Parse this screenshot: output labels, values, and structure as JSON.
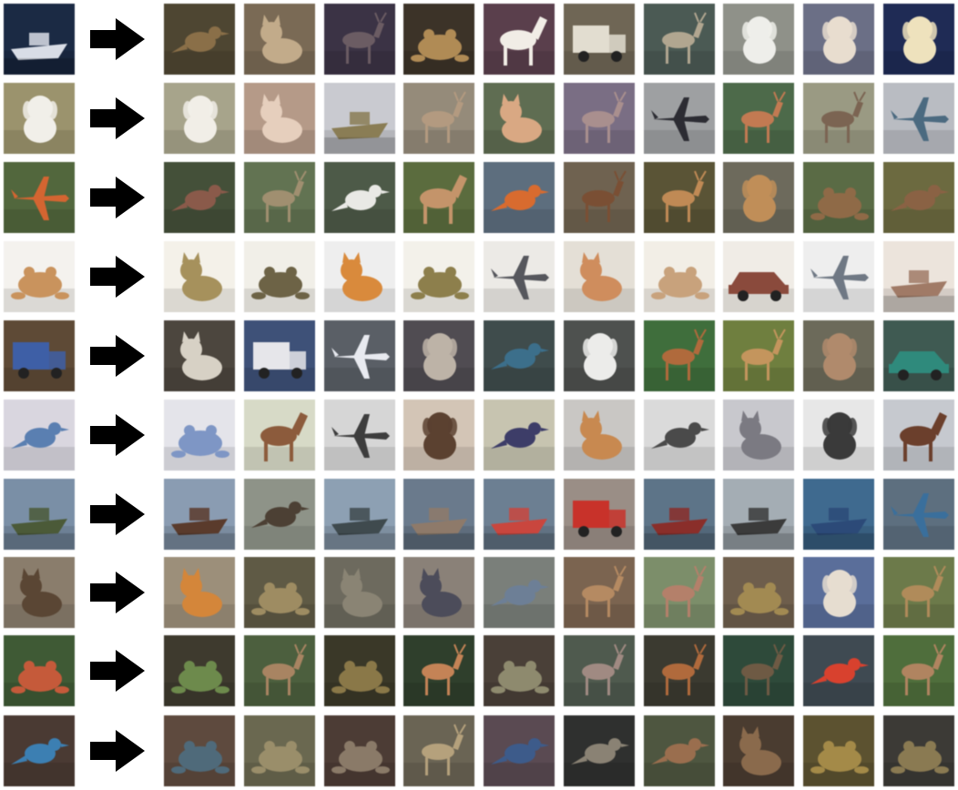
{
  "figure": {
    "arrow_icon": "right-arrow-icon",
    "arrow_color": "#000000",
    "rows": [
      {
        "query": {
          "subject": "boat",
          "bg": "#1b2a44",
          "fg": "#d9dde6",
          "shape": "boat"
        },
        "results": [
          {
            "subject": "bird",
            "bg": "#4e4632",
            "fg": "#8a6f48",
            "shape": "bird"
          },
          {
            "subject": "cat",
            "bg": "#7a6a55",
            "fg": "#c2ab8a",
            "shape": "cat"
          },
          {
            "subject": "deer",
            "bg": "#3b3345",
            "fg": "#6b5c63",
            "shape": "deer"
          },
          {
            "subject": "frog",
            "bg": "#3c3328",
            "fg": "#b08b55",
            "shape": "frog"
          },
          {
            "subject": "horse",
            "bg": "#5a3f4c",
            "fg": "#f1ede6",
            "shape": "horse"
          },
          {
            "subject": "truck",
            "bg": "#6f6655",
            "fg": "#e2ddd0",
            "shape": "truck"
          },
          {
            "subject": "deer",
            "bg": "#4b5a54",
            "fg": "#b1a690",
            "shape": "deer"
          },
          {
            "subject": "dog",
            "bg": "#8f9189",
            "fg": "#eeeeea",
            "shape": "dog"
          },
          {
            "subject": "dog",
            "bg": "#6b6f86",
            "fg": "#e8ddcf",
            "shape": "dog"
          },
          {
            "subject": "dog",
            "bg": "#1f2b55",
            "fg": "#eee2bd",
            "shape": "dog"
          }
        ]
      },
      {
        "query": {
          "subject": "dog",
          "bg": "#9b936d",
          "fg": "#f1efe9",
          "shape": "dog"
        },
        "results": [
          {
            "subject": "dog",
            "bg": "#a7a48b",
            "fg": "#f1eee7",
            "shape": "dog"
          },
          {
            "subject": "cat",
            "bg": "#b59a88",
            "fg": "#e6cfbd",
            "shape": "cat"
          },
          {
            "subject": "ship",
            "bg": "#c9cad0",
            "fg": "#8a7d55",
            "shape": "boat"
          },
          {
            "subject": "deer",
            "bg": "#958b7a",
            "fg": "#b39a80",
            "shape": "deer"
          },
          {
            "subject": "cat",
            "bg": "#5f6d52",
            "fg": "#d9a883",
            "shape": "cat"
          },
          {
            "subject": "deer",
            "bg": "#7a6e84",
            "fg": "#a98f8e",
            "shape": "deer"
          },
          {
            "subject": "airplane",
            "bg": "#9ea0a2",
            "fg": "#2c2c33",
            "shape": "plane"
          },
          {
            "subject": "deer",
            "bg": "#4d6a4a",
            "fg": "#c27a52",
            "shape": "deer"
          },
          {
            "subject": "deer",
            "bg": "#9a9a83",
            "fg": "#7b6452",
            "shape": "deer"
          },
          {
            "subject": "airplane",
            "bg": "#b9bcc2",
            "fg": "#4b6a80",
            "shape": "plane"
          }
        ]
      },
      {
        "query": {
          "subject": "airplane",
          "bg": "#52673d",
          "fg": "#d46531",
          "shape": "plane"
        },
        "results": [
          {
            "subject": "bird",
            "bg": "#445039",
            "fg": "#8a5a4a",
            "shape": "bird"
          },
          {
            "subject": "deer",
            "bg": "#627352",
            "fg": "#a08f70",
            "shape": "deer"
          },
          {
            "subject": "bird",
            "bg": "#4d5a48",
            "fg": "#e9e9e5",
            "shape": "bird"
          },
          {
            "subject": "horse",
            "bg": "#5b6c3e",
            "fg": "#c4946a",
            "shape": "horse"
          },
          {
            "subject": "bird",
            "bg": "#5d6e7e",
            "fg": "#d86b2f",
            "shape": "bird"
          },
          {
            "subject": "deer",
            "bg": "#6f6250",
            "fg": "#7a4f34",
            "shape": "deer"
          },
          {
            "subject": "deer",
            "bg": "#5a5436",
            "fg": "#c08a55",
            "shape": "deer"
          },
          {
            "subject": "dog",
            "bg": "#6d6a5c",
            "fg": "#c08e58",
            "shape": "dog"
          },
          {
            "subject": "frog",
            "bg": "#5a6b45",
            "fg": "#8f6a47",
            "shape": "frog"
          },
          {
            "subject": "bird",
            "bg": "#6c6a40",
            "fg": "#8a6244",
            "shape": "bird"
          }
        ]
      },
      {
        "query": {
          "subject": "frog",
          "bg": "#f4f2ee",
          "fg": "#c9935d",
          "shape": "frog"
        },
        "results": [
          {
            "subject": "cat",
            "bg": "#f4f1e9",
            "fg": "#a6915c",
            "shape": "cat"
          },
          {
            "subject": "frog",
            "bg": "#f1efe8",
            "fg": "#6d6346",
            "shape": "frog"
          },
          {
            "subject": "cat",
            "bg": "#eeeeee",
            "fg": "#d98a3c",
            "shape": "cat"
          },
          {
            "subject": "frog",
            "bg": "#f3f1ea",
            "fg": "#8d7f4c",
            "shape": "frog"
          },
          {
            "subject": "airplane",
            "bg": "#eceae6",
            "fg": "#56575d",
            "shape": "plane"
          },
          {
            "subject": "cat",
            "bg": "#e4dfd6",
            "fg": "#cf8d5d",
            "shape": "cat"
          },
          {
            "subject": "frog",
            "bg": "#f2eee6",
            "fg": "#c8a27c",
            "shape": "frog"
          },
          {
            "subject": "car",
            "bg": "#f0ece6",
            "fg": "#8a4a3c",
            "shape": "car"
          },
          {
            "subject": "airplane",
            "bg": "#eeeeee",
            "fg": "#6f7884",
            "shape": "plane"
          },
          {
            "subject": "ship",
            "bg": "#ece4dc",
            "fg": "#a07a66",
            "shape": "boat"
          }
        ]
      },
      {
        "query": {
          "subject": "truck",
          "bg": "#5e4a36",
          "fg": "#3e5fa6",
          "shape": "truck"
        },
        "results": [
          {
            "subject": "cat",
            "bg": "#4c463e",
            "fg": "#d7d1c5",
            "shape": "cat"
          },
          {
            "subject": "truck",
            "bg": "#3e5178",
            "fg": "#e6e6ea",
            "shape": "truck"
          },
          {
            "subject": "airplane",
            "bg": "#5a5f66",
            "fg": "#e8eaf0",
            "shape": "plane"
          },
          {
            "subject": "dog",
            "bg": "#504c52",
            "fg": "#bdb3a7",
            "shape": "dog"
          },
          {
            "subject": "bird",
            "bg": "#3f4c4c",
            "fg": "#3c6f8b",
            "shape": "bird"
          },
          {
            "subject": "dog",
            "bg": "#4e514f",
            "fg": "#ececea",
            "shape": "dog"
          },
          {
            "subject": "deer",
            "bg": "#3f6e3c",
            "fg": "#b06a3c",
            "shape": "deer"
          },
          {
            "subject": "deer",
            "bg": "#6f7f3f",
            "fg": "#c4955d",
            "shape": "deer"
          },
          {
            "subject": "dog",
            "bg": "#6c6a5a",
            "fg": "#b08a6c",
            "shape": "dog"
          },
          {
            "subject": "car",
            "bg": "#3f5a52",
            "fg": "#2f8a7c",
            "shape": "car"
          }
        ]
      },
      {
        "query": {
          "subject": "bird",
          "bg": "#d9d6df",
          "fg": "#5a7fb1",
          "shape": "bird"
        },
        "results": [
          {
            "subject": "frog",
            "bg": "#e4e4ea",
            "fg": "#7e96c5",
            "shape": "frog"
          },
          {
            "subject": "horse",
            "bg": "#d7dac7",
            "fg": "#8c5b3c",
            "shape": "horse"
          },
          {
            "subject": "airplane",
            "bg": "#d6d6d6",
            "fg": "#3d3d3d",
            "shape": "plane"
          },
          {
            "subject": "dog",
            "bg": "#d3c5b6",
            "fg": "#5b4130",
            "shape": "dog"
          },
          {
            "subject": "bird",
            "bg": "#c7c4b0",
            "fg": "#3d3d68",
            "shape": "bird"
          },
          {
            "subject": "cat",
            "bg": "#c9c7c4",
            "fg": "#c88950",
            "shape": "cat"
          },
          {
            "subject": "bird",
            "bg": "#dadada",
            "fg": "#4a4a4a",
            "shape": "bird"
          },
          {
            "subject": "cat",
            "bg": "#c8c8cd",
            "fg": "#7b7a82",
            "shape": "cat"
          },
          {
            "subject": "dog",
            "bg": "#e7e7e7",
            "fg": "#3a3a3a",
            "shape": "dog"
          },
          {
            "subject": "horse",
            "bg": "#c6c9cf",
            "fg": "#6b3f2c",
            "shape": "horse"
          }
        ]
      },
      {
        "query": {
          "subject": "boat",
          "bg": "#7a8fa6",
          "fg": "#4b5a38",
          "shape": "boat"
        },
        "results": [
          {
            "subject": "ship",
            "bg": "#8a9cb2",
            "fg": "#5a3b2c",
            "shape": "boat"
          },
          {
            "subject": "bird",
            "bg": "#8e9388",
            "fg": "#4c4034",
            "shape": "bird"
          },
          {
            "subject": "ship",
            "bg": "#8da0b3",
            "fg": "#3f4a4e",
            "shape": "boat"
          },
          {
            "subject": "ship",
            "bg": "#6a7a8c",
            "fg": "#8e7a6a",
            "shape": "boat"
          },
          {
            "subject": "ship",
            "bg": "#6c7f92",
            "fg": "#c9463e",
            "shape": "boat"
          },
          {
            "subject": "truck",
            "bg": "#9a8e86",
            "fg": "#c8322a",
            "shape": "truck"
          },
          {
            "subject": "ship",
            "bg": "#5d7488",
            "fg": "#8a2e2a",
            "shape": "boat"
          },
          {
            "subject": "ship",
            "bg": "#a4adb4",
            "fg": "#3b3b3b",
            "shape": "boat"
          },
          {
            "subject": "ship",
            "bg": "#3f6a8f",
            "fg": "#2c4a78",
            "shape": "boat"
          },
          {
            "subject": "airplane",
            "bg": "#5d6f7f",
            "fg": "#3a6f9c",
            "shape": "plane"
          }
        ]
      },
      {
        "query": {
          "subject": "cat",
          "bg": "#8a7d6c",
          "fg": "#5a4634",
          "shape": "cat"
        },
        "results": [
          {
            "subject": "cat",
            "bg": "#9c8f7a",
            "fg": "#d4863a",
            "shape": "cat"
          },
          {
            "subject": "frog",
            "bg": "#5f5a45",
            "fg": "#9e8c62",
            "shape": "frog"
          },
          {
            "subject": "cat",
            "bg": "#6d6a5e",
            "fg": "#8a8474",
            "shape": "cat"
          },
          {
            "subject": "cat",
            "bg": "#8a8178",
            "fg": "#4c4c5a",
            "shape": "cat"
          },
          {
            "subject": "bird",
            "bg": "#7a7f7a",
            "fg": "#6d7f96",
            "shape": "bird"
          },
          {
            "subject": "deer",
            "bg": "#7b6450",
            "fg": "#b58a62",
            "shape": "deer"
          },
          {
            "subject": "deer",
            "bg": "#7c8e6a",
            "fg": "#b4806a",
            "shape": "deer"
          },
          {
            "subject": "frog",
            "bg": "#6e5e4c",
            "fg": "#a28a52",
            "shape": "frog"
          },
          {
            "subject": "dog",
            "bg": "#5a6e9a",
            "fg": "#e6ddd0",
            "shape": "dog"
          },
          {
            "subject": "deer",
            "bg": "#6c7a4a",
            "fg": "#b08b5a",
            "shape": "deer"
          }
        ]
      },
      {
        "query": {
          "subject": "frog",
          "bg": "#3f5a35",
          "fg": "#c55a3a",
          "shape": "frog"
        },
        "results": [
          {
            "subject": "frog",
            "bg": "#3e3a2e",
            "fg": "#6d8a4c",
            "shape": "frog"
          },
          {
            "subject": "deer",
            "bg": "#4c5f3e",
            "fg": "#a88462",
            "shape": "deer"
          },
          {
            "subject": "frog",
            "bg": "#3a3828",
            "fg": "#8a7848",
            "shape": "frog"
          },
          {
            "subject": "deer",
            "bg": "#2f3f2c",
            "fg": "#c48356",
            "shape": "deer"
          },
          {
            "subject": "frog",
            "bg": "#4a4038",
            "fg": "#8e8a6e",
            "shape": "frog"
          },
          {
            "subject": "deer",
            "bg": "#4f5a4e",
            "fg": "#a08a82",
            "shape": "deer"
          },
          {
            "subject": "deer",
            "bg": "#3b3a30",
            "fg": "#b06a3c",
            "shape": "deer"
          },
          {
            "subject": "deer",
            "bg": "#2e4a3a",
            "fg": "#6e5a44",
            "shape": "deer"
          },
          {
            "subject": "bird",
            "bg": "#3f4a52",
            "fg": "#d8412e",
            "shape": "bird"
          },
          {
            "subject": "deer",
            "bg": "#4f6e3c",
            "fg": "#b08460",
            "shape": "deer"
          }
        ]
      },
      {
        "query": {
          "subject": "bird",
          "bg": "#4a3a33",
          "fg": "#3c7fb2",
          "shape": "bird"
        },
        "results": [
          {
            "subject": "frog",
            "bg": "#5e4a3e",
            "fg": "#4f6a7a",
            "shape": "frog"
          },
          {
            "subject": "frog",
            "bg": "#6a6850",
            "fg": "#9a8e6a",
            "shape": "frog"
          },
          {
            "subject": "frog",
            "bg": "#4c3c35",
            "fg": "#8a7a68",
            "shape": "frog"
          },
          {
            "subject": "deer",
            "bg": "#6a6454",
            "fg": "#b5a17c",
            "shape": "deer"
          },
          {
            "subject": "bird",
            "bg": "#5a4a52",
            "fg": "#3d5b8a",
            "shape": "bird"
          },
          {
            "subject": "bird",
            "bg": "#2f302f",
            "fg": "#8a8274",
            "shape": "bird"
          },
          {
            "subject": "bird",
            "bg": "#4e5640",
            "fg": "#9a6e4e",
            "shape": "bird"
          },
          {
            "subject": "cat",
            "bg": "#4a3c30",
            "fg": "#8a6a4c",
            "shape": "cat"
          },
          {
            "subject": "frog",
            "bg": "#5c5230",
            "fg": "#a48a48",
            "shape": "frog"
          },
          {
            "subject": "frog",
            "bg": "#3c3a36",
            "fg": "#8a7a52",
            "shape": "frog"
          }
        ]
      }
    ]
  }
}
